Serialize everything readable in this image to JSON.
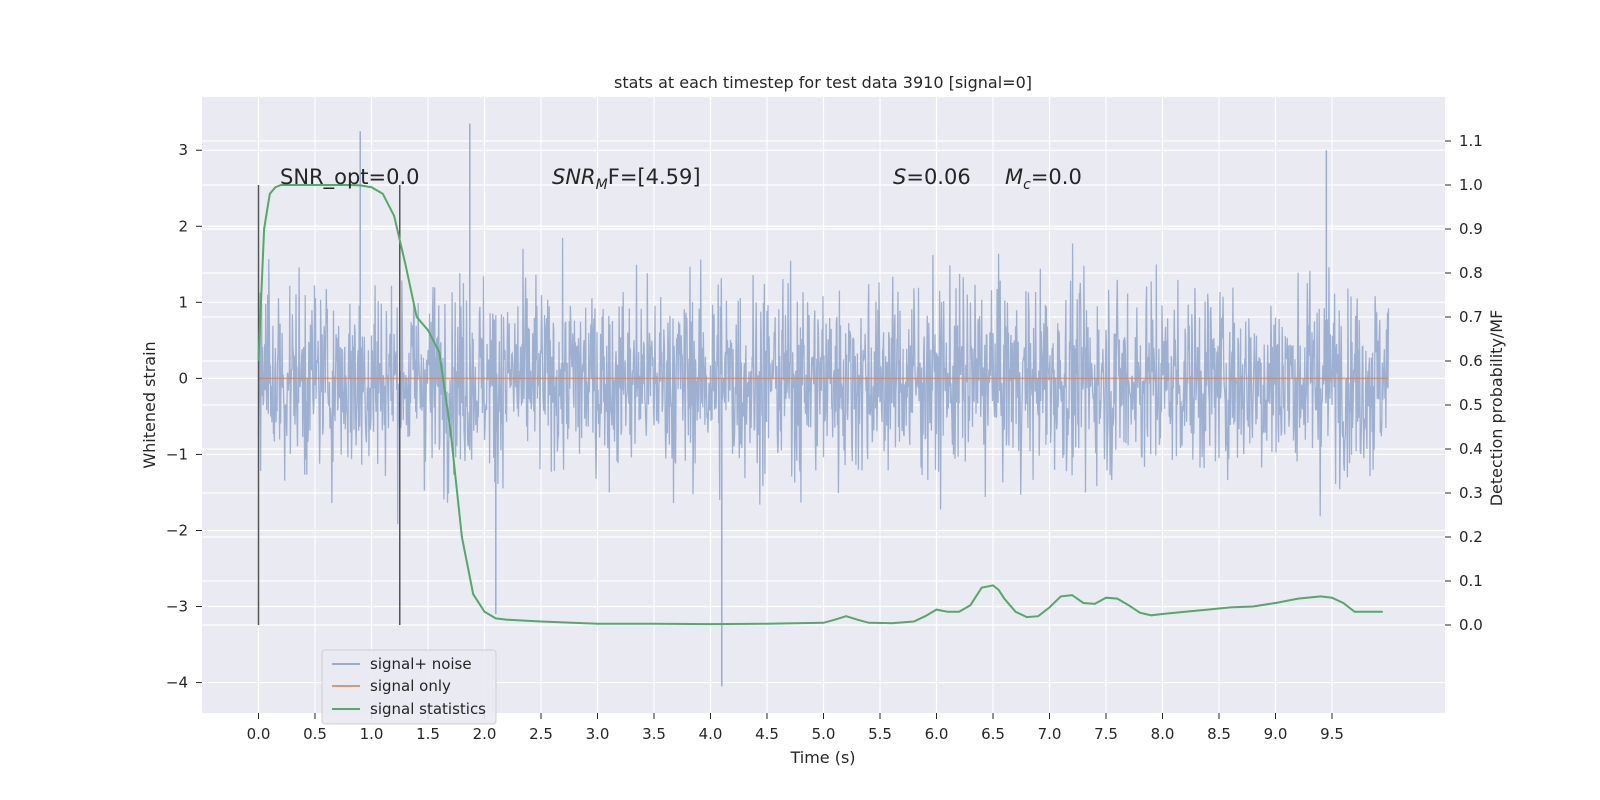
{
  "chart_data": {
    "type": "line",
    "title": "stats at each timestep for test data 3910 [signal=0]",
    "xlabel": "Time (s)",
    "ylabel": "Whitened strain",
    "ylabel_right": "Detection probability/MF",
    "xlim": [
      -0.5,
      10.5
    ],
    "ylim": [
      -4.4,
      3.7
    ],
    "ylim_right": [
      -0.2,
      1.2
    ],
    "xticks": [
      "0.0",
      "0.5",
      "1.0",
      "1.5",
      "2.0",
      "2.5",
      "3.0",
      "3.5",
      "4.0",
      "4.5",
      "5.0",
      "5.5",
      "6.0",
      "6.5",
      "7.0",
      "7.5",
      "8.0",
      "8.5",
      "9.0",
      "9.5"
    ],
    "yticks": [
      "3",
      "2",
      "1",
      "0",
      "−1",
      "−2",
      "−3",
      "−4"
    ],
    "yticks_right": [
      "1.1",
      "1.0",
      "0.9",
      "0.8",
      "0.7",
      "0.6",
      "0.5",
      "0.4",
      "0.3",
      "0.2",
      "0.1",
      "0.0"
    ],
    "grid": true,
    "legend_position": "lower-left",
    "annotations": {
      "snr_opt": "SNR_opt=0.0",
      "snr_mf_main": "SNR",
      "snr_mf_sub": "M",
      "snr_mf_rest": "F=[4.59]",
      "s_sym": "S",
      "s_val": "=0.06",
      "mc_sym": "M",
      "mc_sub": "c",
      "mc_val": "=0.0"
    },
    "vlines_x": [
      0.0,
      1.25
    ],
    "series": [
      {
        "name": "signal+ noise",
        "color": "#9aadd0",
        "x_range": [
          0.0,
          10.0
        ],
        "description_envelope": {
          "typical_abs": 1.4,
          "max": 3.3,
          "min": -4.1
        },
        "spikes": [
          {
            "x": 0.9,
            "y": 3.25
          },
          {
            "x": 1.87,
            "y": 3.35
          },
          {
            "x": 4.1,
            "y": -4.05
          },
          {
            "x": 9.45,
            "y": 3.0
          },
          {
            "x": 2.1,
            "y": -3.1
          }
        ]
      },
      {
        "name": "signal only",
        "color": "#dd8452",
        "x": [
          0.0,
          10.0
        ],
        "y": [
          0.0,
          0.0
        ]
      },
      {
        "name": "signal statistics",
        "color": "#55a868",
        "axis": "right",
        "x": [
          0.0,
          0.05,
          0.1,
          0.15,
          0.2,
          0.3,
          0.4,
          0.5,
          0.6,
          0.7,
          0.8,
          0.9,
          1.0,
          1.1,
          1.2,
          1.3,
          1.4,
          1.5,
          1.6,
          1.7,
          1.8,
          1.9,
          2.0,
          2.1,
          2.2,
          2.5,
          3.0,
          3.5,
          4.0,
          4.5,
          5.0,
          5.1,
          5.2,
          5.3,
          5.4,
          5.6,
          5.8,
          5.9,
          6.0,
          6.1,
          6.2,
          6.3,
          6.4,
          6.5,
          6.55,
          6.6,
          6.7,
          6.8,
          6.9,
          7.0,
          7.1,
          7.2,
          7.3,
          7.4,
          7.5,
          7.6,
          7.7,
          7.8,
          7.9,
          8.0,
          8.2,
          8.4,
          8.6,
          8.8,
          9.0,
          9.2,
          9.4,
          9.5,
          9.6,
          9.7,
          9.8,
          9.95
        ],
        "y": [
          0.6,
          0.9,
          0.98,
          0.995,
          1.0,
          1.0,
          1.0,
          1.0,
          1.0,
          1.0,
          1.0,
          0.999,
          0.995,
          0.98,
          0.93,
          0.82,
          0.7,
          0.67,
          0.62,
          0.44,
          0.2,
          0.07,
          0.03,
          0.015,
          0.012,
          0.008,
          0.003,
          0.003,
          0.002,
          0.003,
          0.005,
          0.012,
          0.02,
          0.012,
          0.005,
          0.004,
          0.008,
          0.02,
          0.035,
          0.03,
          0.03,
          0.045,
          0.085,
          0.09,
          0.08,
          0.06,
          0.03,
          0.018,
          0.02,
          0.04,
          0.065,
          0.068,
          0.05,
          0.048,
          0.062,
          0.06,
          0.045,
          0.028,
          0.022,
          0.025,
          0.03,
          0.035,
          0.04,
          0.042,
          0.05,
          0.06,
          0.065,
          0.062,
          0.05,
          0.03,
          0.03,
          0.03
        ]
      }
    ]
  }
}
